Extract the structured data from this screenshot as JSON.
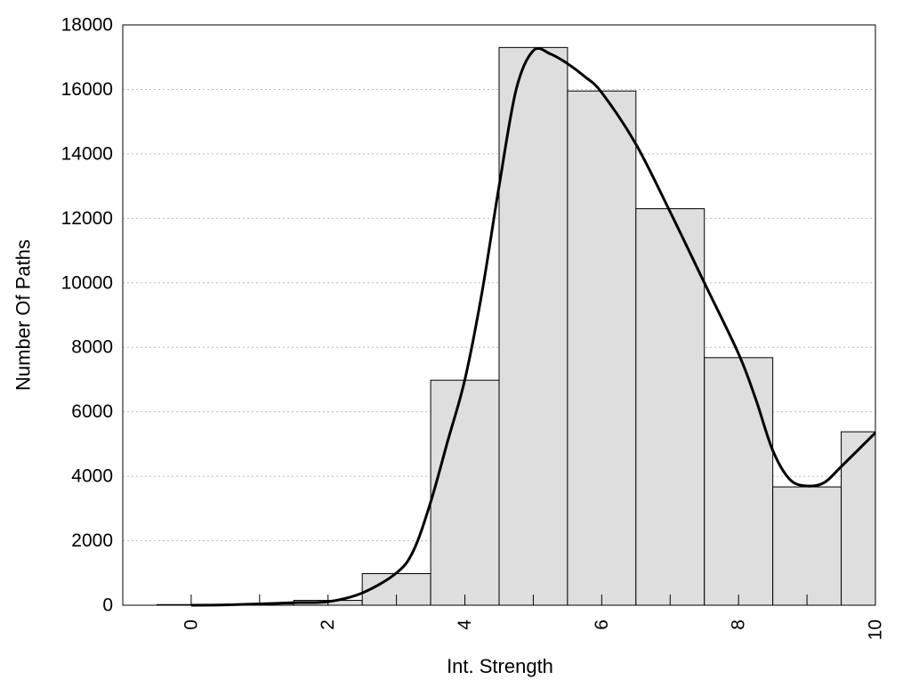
{
  "chart_data": {
    "type": "bar",
    "title": "",
    "xlabel": "Int. Strength",
    "ylabel": "Number Of Paths",
    "xlim": [
      -1,
      10
    ],
    "ylim": [
      0,
      18000
    ],
    "grid": "horizontal dotted",
    "colors": {
      "bar_fill": "#dedede",
      "bar_stroke": "#000000",
      "curve": "#000000",
      "grid": "#bbbbbb"
    },
    "x_ticks": [
      0,
      2,
      4,
      6,
      8,
      10
    ],
    "x_tick_labels": [
      "0",
      "2",
      "4",
      "6",
      "8",
      "10"
    ],
    "y_ticks": [
      0,
      2000,
      4000,
      6000,
      8000,
      10000,
      12000,
      14000,
      16000,
      18000
    ],
    "y_tick_labels": [
      "0",
      "2000",
      "4000",
      "6000",
      "8000",
      "10000",
      "12000",
      "14000",
      "16000",
      "18000"
    ],
    "bins": [
      {
        "x": 0,
        "value": 20
      },
      {
        "x": 1,
        "value": 40
      },
      {
        "x": 2,
        "value": 150
      },
      {
        "x": 3,
        "value": 980
      },
      {
        "x": 4,
        "value": 6980
      },
      {
        "x": 5,
        "value": 17300
      },
      {
        "x": 6,
        "value": 15950
      },
      {
        "x": 7,
        "value": 12300
      },
      {
        "x": 8,
        "value": 7680
      },
      {
        "x": 9,
        "value": 3670
      },
      {
        "x": 10,
        "value": 5380
      }
    ],
    "curve": {
      "x": [
        0,
        0.5,
        1,
        1.5,
        2,
        2.5,
        3,
        3.25,
        3.5,
        3.75,
        4,
        4.25,
        4.5,
        4.75,
        5,
        5.25,
        5.5,
        5.75,
        6,
        6.5,
        7,
        7.5,
        8,
        8.25,
        8.5,
        8.75,
        9,
        9.25,
        9.5,
        10
      ],
      "y": [
        0,
        10,
        40,
        80,
        110,
        380,
        1000,
        1700,
        3200,
        5100,
        7000,
        9700,
        13000,
        16000,
        17200,
        17100,
        16800,
        16400,
        15900,
        14300,
        12200,
        10000,
        7800,
        6400,
        4800,
        3900,
        3700,
        3800,
        4300,
        5350
      ]
    }
  }
}
